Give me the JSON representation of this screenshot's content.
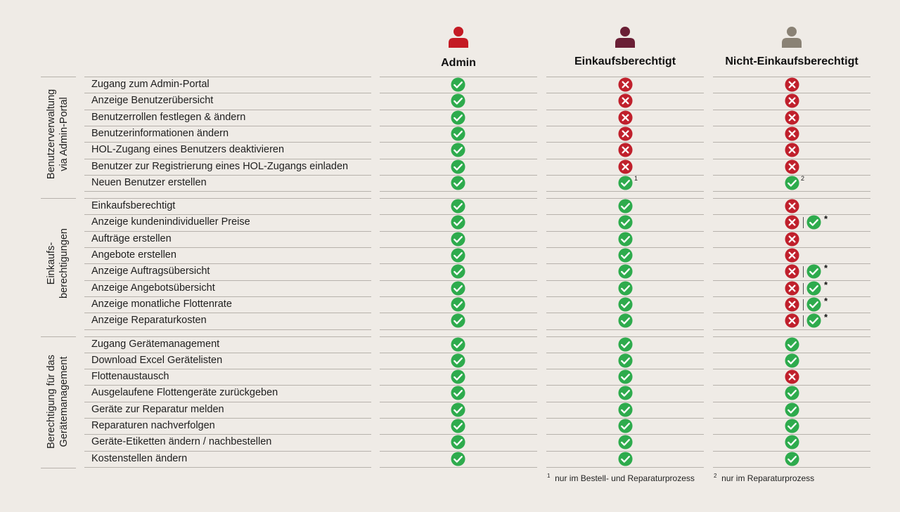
{
  "colors": {
    "check": "#2eab4d",
    "cross": "#c0202c",
    "admin": "#c41a24",
    "einkauf": "#6a1f35",
    "nicht": "#8a8275",
    "background": "#efebe6"
  },
  "columns": [
    {
      "title": "Admin",
      "icon": "person-icon"
    },
    {
      "title": "Einkaufsberechtigt",
      "icon": "person-icon"
    },
    {
      "title": "Nicht-Einkaufsberechtigt",
      "icon": "person-icon"
    }
  ],
  "groups": [
    {
      "label": [
        "Benutzerverwaltung",
        "via Admin-Portal"
      ],
      "rows": [
        {
          "label": "Zugang zum Admin-Portal",
          "cells": [
            {
              "v": "check"
            },
            {
              "v": "cross"
            },
            {
              "v": "cross"
            }
          ]
        },
        {
          "label": "Anzeige Benutzerübersicht",
          "cells": [
            {
              "v": "check"
            },
            {
              "v": "cross"
            },
            {
              "v": "cross"
            }
          ]
        },
        {
          "label": "Benutzerrollen festlegen & ändern",
          "cells": [
            {
              "v": "check"
            },
            {
              "v": "cross"
            },
            {
              "v": "cross"
            }
          ]
        },
        {
          "label": "Benutzerinformationen ändern",
          "cells": [
            {
              "v": "check"
            },
            {
              "v": "cross"
            },
            {
              "v": "cross"
            }
          ]
        },
        {
          "label": "HOL-Zugang eines Benutzers deaktivieren",
          "cells": [
            {
              "v": "check"
            },
            {
              "v": "cross"
            },
            {
              "v": "cross"
            }
          ]
        },
        {
          "label": "Benutzer zur Registrierung eines HOL-Zugangs einladen",
          "cells": [
            {
              "v": "check"
            },
            {
              "v": "cross"
            },
            {
              "v": "cross"
            }
          ]
        },
        {
          "label": "Neuen Benutzer erstellen",
          "cells": [
            {
              "v": "check"
            },
            {
              "v": "check",
              "note": "1"
            },
            {
              "v": "check",
              "note": "2"
            }
          ]
        }
      ]
    },
    {
      "label": [
        "Einkaufs-",
        "berechtigungen"
      ],
      "rows": [
        {
          "label": "Einkaufsberechtigt",
          "cells": [
            {
              "v": "check"
            },
            {
              "v": "check"
            },
            {
              "v": "cross"
            }
          ]
        },
        {
          "label": "Anzeige kundenindividueller Preise",
          "cells": [
            {
              "v": "check"
            },
            {
              "v": "check"
            },
            {
              "v": "cross-check",
              "note": "*"
            }
          ]
        },
        {
          "label": "Aufträge erstellen",
          "cells": [
            {
              "v": "check"
            },
            {
              "v": "check"
            },
            {
              "v": "cross"
            }
          ]
        },
        {
          "label": "Angebote erstellen",
          "cells": [
            {
              "v": "check"
            },
            {
              "v": "check"
            },
            {
              "v": "cross"
            }
          ]
        },
        {
          "label": "Anzeige Auftragsübersicht",
          "cells": [
            {
              "v": "check"
            },
            {
              "v": "check"
            },
            {
              "v": "cross-check",
              "note": "*"
            }
          ]
        },
        {
          "label": "Anzeige Angebotsübersicht",
          "cells": [
            {
              "v": "check"
            },
            {
              "v": "check"
            },
            {
              "v": "cross-check",
              "note": "*"
            }
          ]
        },
        {
          "label": "Anzeige monatliche Flottenrate",
          "cells": [
            {
              "v": "check"
            },
            {
              "v": "check"
            },
            {
              "v": "cross-check",
              "note": "*"
            }
          ]
        },
        {
          "label": "Anzeige Reparaturkosten",
          "cells": [
            {
              "v": "check"
            },
            {
              "v": "check"
            },
            {
              "v": "cross-check",
              "note": "*"
            }
          ]
        }
      ]
    },
    {
      "label": [
        "Berechtigung für das",
        "Gerätemanagement"
      ],
      "rows": [
        {
          "label": "Zugang Gerätemanagement",
          "cells": [
            {
              "v": "check"
            },
            {
              "v": "check"
            },
            {
              "v": "check"
            }
          ]
        },
        {
          "label": "Download Excel Gerätelisten",
          "cells": [
            {
              "v": "check"
            },
            {
              "v": "check"
            },
            {
              "v": "check"
            }
          ]
        },
        {
          "label": "Flottenaustausch",
          "cells": [
            {
              "v": "check"
            },
            {
              "v": "check"
            },
            {
              "v": "cross"
            }
          ]
        },
        {
          "label": "Ausgelaufene Flottengeräte zurückgeben",
          "cells": [
            {
              "v": "check"
            },
            {
              "v": "check"
            },
            {
              "v": "check"
            }
          ]
        },
        {
          "label": "Geräte zur Reparatur melden",
          "cells": [
            {
              "v": "check"
            },
            {
              "v": "check"
            },
            {
              "v": "check"
            }
          ]
        },
        {
          "label": "Reparaturen nachverfolgen",
          "cells": [
            {
              "v": "check"
            },
            {
              "v": "check"
            },
            {
              "v": "check"
            }
          ]
        },
        {
          "label": "Geräte-Etiketten ändern / nachbestellen",
          "cells": [
            {
              "v": "check"
            },
            {
              "v": "check"
            },
            {
              "v": "check"
            }
          ]
        },
        {
          "label": "Kostenstellen ändern",
          "cells": [
            {
              "v": "check"
            },
            {
              "v": "check"
            },
            {
              "v": "check"
            }
          ]
        }
      ]
    }
  ],
  "footnotes": [
    {
      "mark": "1",
      "text": "nur im Bestell- und Reparaturprozess"
    },
    {
      "mark": "2",
      "text": "nur im Reparaturprozess"
    }
  ]
}
